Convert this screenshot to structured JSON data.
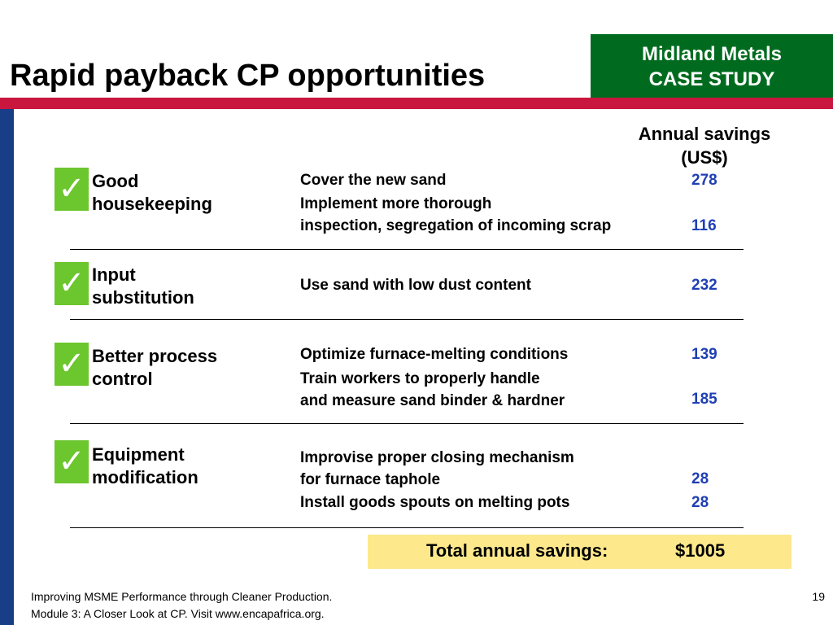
{
  "slide": {
    "title": "Rapid payback CP opportunities",
    "case_study": {
      "line1": "Midland Metals",
      "line2": "CASE STUDY"
    },
    "column_header": {
      "line1": "Annual savings",
      "line2": "(US$)"
    },
    "check_glyph": "✓",
    "categories": [
      {
        "label_line1": "Good",
        "label_line2": "housekeeping",
        "items": [
          {
            "text_line1": "Cover the new sand",
            "text_line2": "",
            "savings": "278"
          },
          {
            "text_line1": "Implement more thorough",
            "text_line2": "inspection, segregation of incoming scrap",
            "savings": "116"
          }
        ]
      },
      {
        "label_line1": "Input",
        "label_line2": "substitution",
        "items": [
          {
            "text_line1": "Use sand with low dust content",
            "text_line2": "",
            "savings": "232"
          }
        ]
      },
      {
        "label_line1": "Better process",
        "label_line2": "control",
        "items": [
          {
            "text_line1": "Optimize furnace-melting conditions",
            "text_line2": "",
            "savings": "139"
          },
          {
            "text_line1": "Train workers to properly handle",
            "text_line2": "and measure sand binder & hardner",
            "savings": "185"
          }
        ]
      },
      {
        "label_line1": "Equipment",
        "label_line2": "modification",
        "items": [
          {
            "text_line1": "Improvise proper closing mechanism",
            "text_line2": "for furnace taphole",
            "savings": "28"
          },
          {
            "text_line1": "Install goods spouts on melting pots",
            "text_line2": "",
            "savings": "28"
          }
        ]
      }
    ],
    "total": {
      "label": "Total annual savings:",
      "value": "$1005"
    },
    "footer": {
      "line1": "Improving MSME Performance through Cleaner Production.",
      "line2": "Module 3: A Closer Look at CP. Visit www.encapafrica.org."
    },
    "page_number": "19"
  },
  "colors": {
    "case_box": "#006b1f",
    "red_bar": "#c8163e",
    "left_bar": "#173e86",
    "checkmark_box": "#6cc62e",
    "savings_value": "#1f3fb4",
    "total_box": "#fde88c"
  }
}
